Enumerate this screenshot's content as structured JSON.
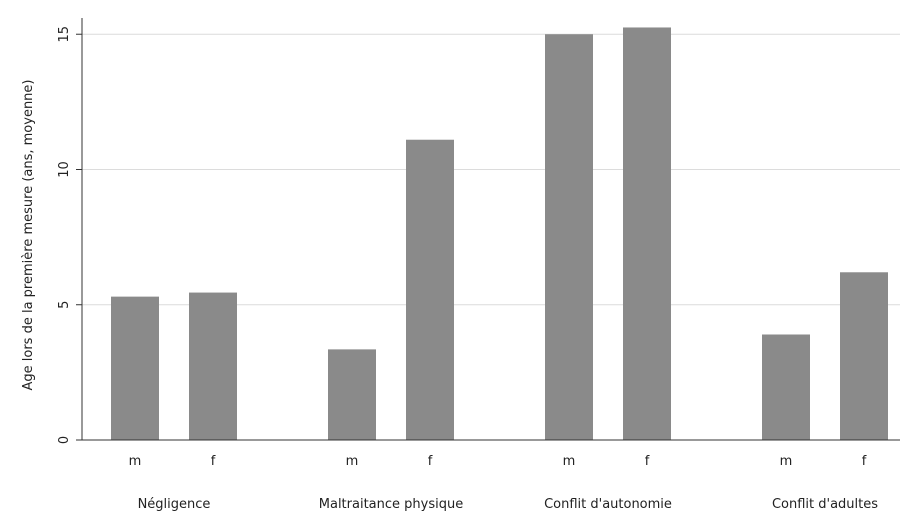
{
  "chart_data": {
    "type": "bar",
    "ylabel": "Age lors de la première mesure (ans, moyenne)",
    "ylim": [
      0,
      15.6
    ],
    "yticks": [
      0,
      5,
      10,
      15
    ],
    "grid": true,
    "colors": {
      "bar": "#8a8a8a",
      "grid": "#dcdcdc",
      "axis": "#333333"
    },
    "groups": [
      {
        "label": "Négligence",
        "bars": [
          {
            "category": "m",
            "value": 5.3
          },
          {
            "category": "f",
            "value": 5.45
          }
        ]
      },
      {
        "label": "Maltraitance physique",
        "bars": [
          {
            "category": "m",
            "value": 3.35
          },
          {
            "category": "f",
            "value": 11.1
          }
        ]
      },
      {
        "label": "Conflit d'autonomie",
        "bars": [
          {
            "category": "m",
            "value": 15.0
          },
          {
            "category": "f",
            "value": 15.25
          }
        ]
      },
      {
        "label": "Conflit d'adultes",
        "bars": [
          {
            "category": "m",
            "value": 3.9
          },
          {
            "category": "f",
            "value": 6.2
          }
        ]
      }
    ]
  }
}
